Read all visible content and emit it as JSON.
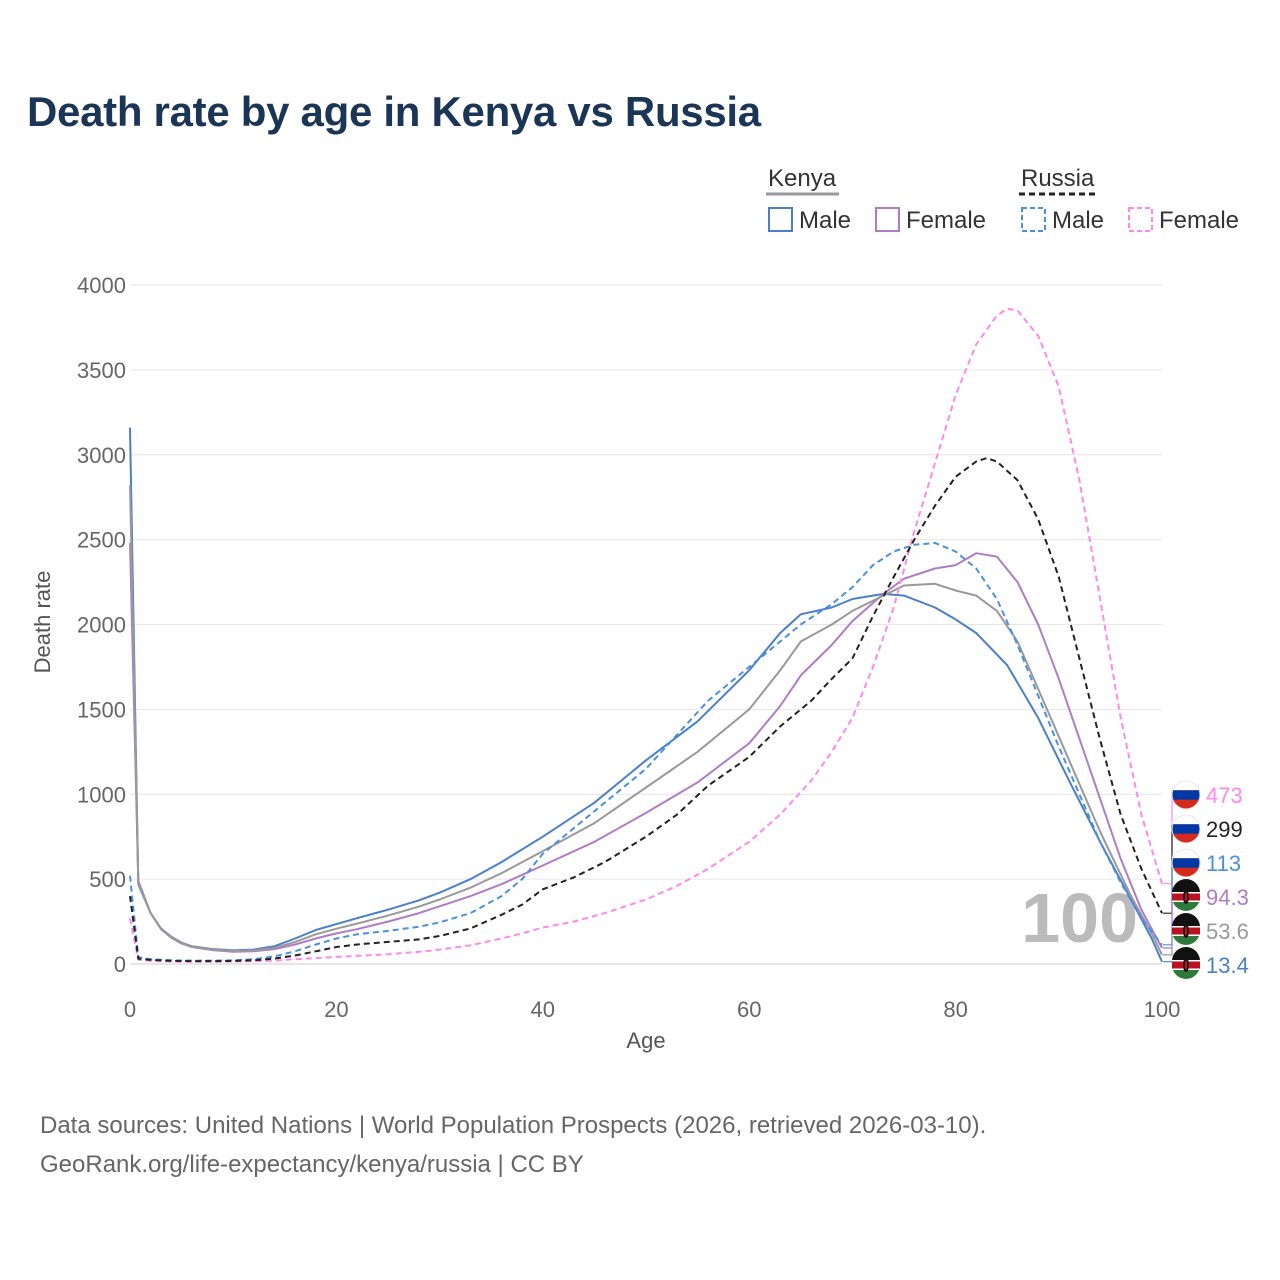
{
  "title": "Death rate by age in Kenya vs Russia",
  "legend": {
    "group_kenya": "Kenya",
    "group_russia": "Russia",
    "kenya_male": "Male",
    "kenya_female": "Female",
    "russia_male": "Male",
    "russia_female": "Female"
  },
  "footer": {
    "line1": "Data sources: United Nations | World Population Prospects (2026, retrieved 2026-03-10).",
    "line2": "GeoRank.org/life-expectancy/kenya/russia | CC BY"
  },
  "colors": {
    "kenya_male": "#4a7fc9",
    "kenya_female": "#b07cc6",
    "kenya_total": "#999999",
    "russia_male": "#4a90e2",
    "russia_female": "#ff88ee",
    "russia_total": "#222222",
    "grid": "#e6e6e6",
    "title": "#1b3556"
  },
  "chart_data": {
    "type": "line",
    "title": "Death rate by age in Kenya vs Russia",
    "xlabel": "Age",
    "ylabel": "Death rate",
    "xlim": [
      0,
      100
    ],
    "ylim": [
      0,
      4000
    ],
    "x_ticks": [
      0,
      20,
      40,
      60,
      80,
      100
    ],
    "y_ticks": [
      0,
      500,
      1000,
      1500,
      2000,
      2500,
      3000,
      3500,
      4000
    ],
    "grid": true,
    "current_age_label": "100",
    "series": [
      {
        "key": "kenya_male",
        "country": "Kenya",
        "sex": "Male",
        "style": "solid",
        "end_label": "13.4",
        "points": [
          [
            0,
            3160
          ],
          [
            0.8,
            470
          ],
          [
            2,
            300
          ],
          [
            3,
            210
          ],
          [
            4,
            160
          ],
          [
            5,
            125
          ],
          [
            6,
            105
          ],
          [
            8,
            88
          ],
          [
            10,
            80
          ],
          [
            12,
            85
          ],
          [
            14,
            105
          ],
          [
            16,
            150
          ],
          [
            18,
            200
          ],
          [
            20,
            235
          ],
          [
            22,
            270
          ],
          [
            25,
            320
          ],
          [
            28,
            375
          ],
          [
            30,
            420
          ],
          [
            33,
            500
          ],
          [
            36,
            600
          ],
          [
            40,
            750
          ],
          [
            45,
            950
          ],
          [
            50,
            1200
          ],
          [
            55,
            1430
          ],
          [
            60,
            1730
          ],
          [
            63,
            1950
          ],
          [
            65,
            2060
          ],
          [
            68,
            2100
          ],
          [
            70,
            2150
          ],
          [
            73,
            2180
          ],
          [
            75,
            2170
          ],
          [
            78,
            2100
          ],
          [
            80,
            2030
          ],
          [
            82,
            1950
          ],
          [
            85,
            1760
          ],
          [
            88,
            1450
          ],
          [
            91,
            1080
          ],
          [
            94,
            720
          ],
          [
            97,
            380
          ],
          [
            99,
            150
          ],
          [
            100,
            13.4
          ]
        ]
      },
      {
        "key": "kenya_female",
        "country": "Kenya",
        "sex": "Female",
        "style": "solid",
        "end_label": "94.3",
        "points": [
          [
            0,
            2480
          ],
          [
            0.8,
            490
          ],
          [
            2,
            300
          ],
          [
            3,
            205
          ],
          [
            4,
            155
          ],
          [
            5,
            120
          ],
          [
            6,
            100
          ],
          [
            8,
            82
          ],
          [
            10,
            72
          ],
          [
            12,
            75
          ],
          [
            14,
            88
          ],
          [
            16,
            115
          ],
          [
            18,
            150
          ],
          [
            20,
            180
          ],
          [
            22,
            205
          ],
          [
            25,
            250
          ],
          [
            28,
            300
          ],
          [
            30,
            340
          ],
          [
            33,
            400
          ],
          [
            36,
            470
          ],
          [
            40,
            580
          ],
          [
            45,
            720
          ],
          [
            50,
            890
          ],
          [
            55,
            1070
          ],
          [
            60,
            1300
          ],
          [
            63,
            1520
          ],
          [
            65,
            1700
          ],
          [
            68,
            1880
          ],
          [
            70,
            2020
          ],
          [
            73,
            2180
          ],
          [
            75,
            2270
          ],
          [
            78,
            2330
          ],
          [
            80,
            2350
          ],
          [
            82,
            2420
          ],
          [
            84,
            2400
          ],
          [
            86,
            2250
          ],
          [
            88,
            2000
          ],
          [
            90,
            1680
          ],
          [
            93,
            1150
          ],
          [
            96,
            620
          ],
          [
            98,
            320
          ],
          [
            100,
            94.3
          ]
        ]
      },
      {
        "key": "kenya_total",
        "country": "Kenya",
        "sex": "Total",
        "style": "solid",
        "end_label": "53.6",
        "points": [
          [
            0,
            2820
          ],
          [
            0.8,
            480
          ],
          [
            2,
            300
          ],
          [
            3,
            208
          ],
          [
            4,
            158
          ],
          [
            5,
            122
          ],
          [
            6,
            103
          ],
          [
            8,
            85
          ],
          [
            10,
            76
          ],
          [
            12,
            80
          ],
          [
            14,
            95
          ],
          [
            16,
            130
          ],
          [
            18,
            175
          ],
          [
            20,
            208
          ],
          [
            22,
            238
          ],
          [
            25,
            285
          ],
          [
            28,
            338
          ],
          [
            30,
            380
          ],
          [
            33,
            450
          ],
          [
            36,
            535
          ],
          [
            40,
            665
          ],
          [
            45,
            830
          ],
          [
            50,
            1040
          ],
          [
            55,
            1250
          ],
          [
            60,
            1500
          ],
          [
            63,
            1730
          ],
          [
            65,
            1900
          ],
          [
            68,
            2000
          ],
          [
            70,
            2080
          ],
          [
            73,
            2170
          ],
          [
            75,
            2230
          ],
          [
            78,
            2240
          ],
          [
            80,
            2200
          ],
          [
            82,
            2170
          ],
          [
            84,
            2080
          ],
          [
            86,
            1900
          ],
          [
            88,
            1620
          ],
          [
            91,
            1200
          ],
          [
            94,
            780
          ],
          [
            97,
            400
          ],
          [
            99,
            180
          ],
          [
            100,
            53.6
          ]
        ]
      },
      {
        "key": "russia_male",
        "country": "Russia",
        "sex": "Male",
        "style": "dashed",
        "end_label": "113",
        "points": [
          [
            0,
            520
          ],
          [
            0.8,
            40
          ],
          [
            2,
            28
          ],
          [
            4,
            22
          ],
          [
            6,
            20
          ],
          [
            8,
            20
          ],
          [
            10,
            22
          ],
          [
            12,
            28
          ],
          [
            14,
            45
          ],
          [
            16,
            75
          ],
          [
            18,
            115
          ],
          [
            20,
            150
          ],
          [
            22,
            175
          ],
          [
            25,
            195
          ],
          [
            28,
            220
          ],
          [
            30,
            245
          ],
          [
            33,
            300
          ],
          [
            36,
            400
          ],
          [
            38,
            500
          ],
          [
            40,
            650
          ],
          [
            43,
            800
          ],
          [
            46,
            950
          ],
          [
            50,
            1150
          ],
          [
            53,
            1350
          ],
          [
            56,
            1550
          ],
          [
            60,
            1750
          ],
          [
            63,
            1900
          ],
          [
            65,
            2000
          ],
          [
            68,
            2120
          ],
          [
            70,
            2220
          ],
          [
            72,
            2350
          ],
          [
            74,
            2430
          ],
          [
            76,
            2470
          ],
          [
            78,
            2480
          ],
          [
            80,
            2430
          ],
          [
            82,
            2330
          ],
          [
            84,
            2150
          ],
          [
            86,
            1880
          ],
          [
            88,
            1580
          ],
          [
            90,
            1280
          ],
          [
            92,
            1000
          ],
          [
            94,
            720
          ],
          [
            96,
            480
          ],
          [
            98,
            270
          ],
          [
            100,
            113
          ]
        ]
      },
      {
        "key": "russia_female",
        "country": "Russia",
        "sex": "Female",
        "style": "dashed",
        "end_label": "473",
        "points": [
          [
            0,
            270
          ],
          [
            0.8,
            25
          ],
          [
            2,
            18
          ],
          [
            4,
            14
          ],
          [
            6,
            13
          ],
          [
            8,
            13
          ],
          [
            10,
            14
          ],
          [
            12,
            16
          ],
          [
            14,
            20
          ],
          [
            16,
            28
          ],
          [
            18,
            35
          ],
          [
            20,
            42
          ],
          [
            22,
            48
          ],
          [
            25,
            58
          ],
          [
            28,
            72
          ],
          [
            30,
            85
          ],
          [
            33,
            110
          ],
          [
            36,
            150
          ],
          [
            38,
            180
          ],
          [
            40,
            215
          ],
          [
            43,
            250
          ],
          [
            46,
            300
          ],
          [
            50,
            380
          ],
          [
            53,
            460
          ],
          [
            56,
            560
          ],
          [
            60,
            720
          ],
          [
            63,
            880
          ],
          [
            66,
            1080
          ],
          [
            68,
            1250
          ],
          [
            70,
            1450
          ],
          [
            72,
            1750
          ],
          [
            74,
            2100
          ],
          [
            76,
            2550
          ],
          [
            78,
            2950
          ],
          [
            80,
            3350
          ],
          [
            82,
            3650
          ],
          [
            84,
            3820
          ],
          [
            85,
            3860
          ],
          [
            86,
            3850
          ],
          [
            88,
            3700
          ],
          [
            90,
            3400
          ],
          [
            92,
            2850
          ],
          [
            94,
            2150
          ],
          [
            96,
            1450
          ],
          [
            98,
            880
          ],
          [
            100,
            473
          ]
        ]
      },
      {
        "key": "russia_total",
        "country": "Russia",
        "sex": "Total",
        "style": "dashed",
        "end_label": "299",
        "points": [
          [
            0,
            400
          ],
          [
            0.8,
            32
          ],
          [
            2,
            24
          ],
          [
            4,
            18
          ],
          [
            6,
            17
          ],
          [
            8,
            17
          ],
          [
            10,
            18
          ],
          [
            12,
            22
          ],
          [
            14,
            32
          ],
          [
            16,
            50
          ],
          [
            18,
            75
          ],
          [
            20,
            100
          ],
          [
            22,
            115
          ],
          [
            25,
            130
          ],
          [
            28,
            145
          ],
          [
            30,
            165
          ],
          [
            33,
            210
          ],
          [
            36,
            290
          ],
          [
            38,
            350
          ],
          [
            40,
            440
          ],
          [
            43,
            510
          ],
          [
            46,
            600
          ],
          [
            50,
            750
          ],
          [
            53,
            880
          ],
          [
            56,
            1050
          ],
          [
            60,
            1220
          ],
          [
            63,
            1400
          ],
          [
            66,
            1550
          ],
          [
            68,
            1680
          ],
          [
            70,
            1800
          ],
          [
            72,
            2050
          ],
          [
            74,
            2280
          ],
          [
            76,
            2500
          ],
          [
            78,
            2700
          ],
          [
            80,
            2870
          ],
          [
            82,
            2960
          ],
          [
            83,
            2980
          ],
          [
            84,
            2960
          ],
          [
            86,
            2850
          ],
          [
            88,
            2620
          ],
          [
            90,
            2280
          ],
          [
            92,
            1800
          ],
          [
            94,
            1320
          ],
          [
            96,
            880
          ],
          [
            98,
            560
          ],
          [
            100,
            299
          ]
        ]
      }
    ]
  }
}
